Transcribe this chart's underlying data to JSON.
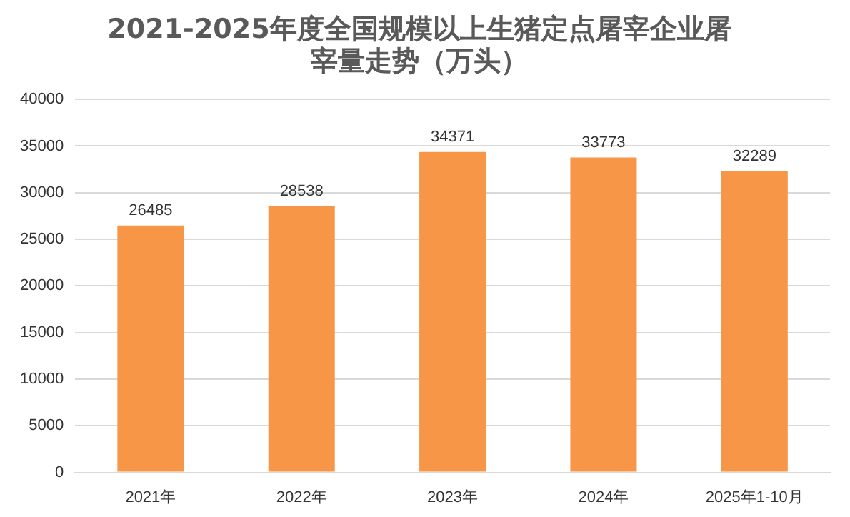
{
  "chart_data": {
    "type": "bar",
    "title": "2021-2025年度全国规模以上生猪定点屠宰企业屠宰量走势（万头）",
    "categories": [
      "2021年",
      "2022年",
      "2023年",
      "2024年",
      "2025年1-10月"
    ],
    "values": [
      26485,
      28538,
      34371,
      33773,
      32289
    ],
    "color": "#f79646",
    "ylim": [
      0,
      40000
    ],
    "yticks": [
      0,
      5000,
      10000,
      15000,
      20000,
      25000,
      30000,
      35000,
      40000
    ],
    "grid": "y",
    "data_labels": true
  }
}
